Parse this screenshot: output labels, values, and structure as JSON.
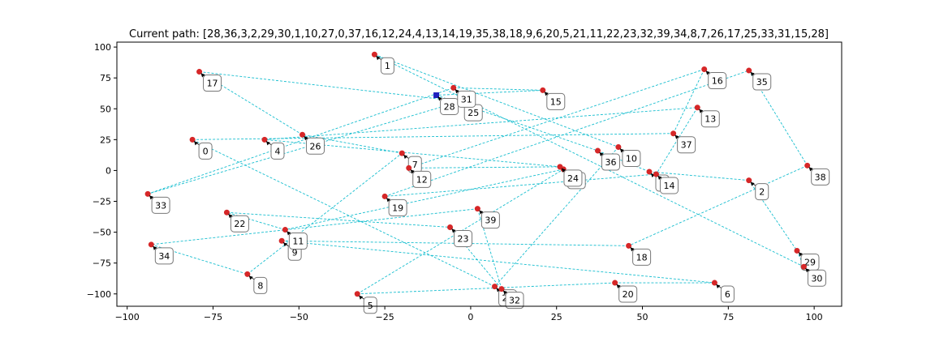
{
  "chart_data": {
    "type": "scatter",
    "title": "Current path: [28,36,3,2,29,30,1,10,27,0,37,16,12,24,4,13,14,19,35,38,18,9,6,20,5,21,11,22,23,32,39,34,8,7,26,17,25,33,31,15,28]",
    "xlabel": "",
    "ylabel": "",
    "xlim": [
      -103,
      108
    ],
    "ylim": [
      -110,
      104
    ],
    "xticks": [
      -100,
      -75,
      -50,
      -25,
      0,
      25,
      50,
      75,
      100
    ],
    "yticks": [
      -100,
      -75,
      -50,
      -25,
      0,
      25,
      50,
      75,
      100
    ],
    "grid": false,
    "point_color": "#d62728",
    "start_marker_color": "#1f1fbf",
    "path_color": "#17becf",
    "points": [
      {
        "id": 0,
        "x": -81,
        "y": 25
      },
      {
        "id": 1,
        "x": -28,
        "y": 94
      },
      {
        "id": 2,
        "x": 81,
        "y": -8
      },
      {
        "id": 3,
        "x": 52,
        "y": -1
      },
      {
        "id": 4,
        "x": -60,
        "y": 25
      },
      {
        "id": 5,
        "x": -33,
        "y": -100
      },
      {
        "id": 6,
        "x": 71,
        "y": -91
      },
      {
        "id": 7,
        "x": -20,
        "y": 14
      },
      {
        "id": 8,
        "x": -65,
        "y": -84
      },
      {
        "id": 9,
        "x": -55,
        "y": -57
      },
      {
        "id": 10,
        "x": 43,
        "y": 19
      },
      {
        "id": 11,
        "x": -54,
        "y": -48
      },
      {
        "id": 12,
        "x": -18,
        "y": 2
      },
      {
        "id": 13,
        "x": 66,
        "y": 51
      },
      {
        "id": 14,
        "x": 54,
        "y": -3
      },
      {
        "id": 15,
        "x": 21,
        "y": 65
      },
      {
        "id": 16,
        "x": 68,
        "y": 82
      },
      {
        "id": 17,
        "x": -79,
        "y": 80
      },
      {
        "id": 18,
        "x": 46,
        "y": -61
      },
      {
        "id": 19,
        "x": -25,
        "y": -21
      },
      {
        "id": 20,
        "x": 42,
        "y": -91
      },
      {
        "id": 21,
        "x": 27,
        "y": 1
      },
      {
        "id": 22,
        "x": -71,
        "y": -34
      },
      {
        "id": 23,
        "x": -6,
        "y": -46
      },
      {
        "id": 24,
        "x": 26,
        "y": 3
      },
      {
        "id": 25,
        "x": -3,
        "y": 56
      },
      {
        "id": 26,
        "x": -49,
        "y": 29
      },
      {
        "id": 27,
        "x": 7,
        "y": -94
      },
      {
        "id": 28,
        "x": -10,
        "y": 61
      },
      {
        "id": 29,
        "x": 95,
        "y": -65
      },
      {
        "id": 30,
        "x": 97,
        "y": -78
      },
      {
        "id": 31,
        "x": -5,
        "y": 67
      },
      {
        "id": 32,
        "x": 9,
        "y": -96
      },
      {
        "id": 33,
        "x": -94,
        "y": -19
      },
      {
        "id": 34,
        "x": -93,
        "y": -60
      },
      {
        "id": 35,
        "x": 81,
        "y": 81
      },
      {
        "id": 36,
        "x": 37,
        "y": 16
      },
      {
        "id": 37,
        "x": 59,
        "y": 30
      },
      {
        "id": 38,
        "x": 98,
        "y": 4
      },
      {
        "id": 39,
        "x": 2,
        "y": -31
      }
    ],
    "path": [
      28,
      36,
      3,
      2,
      29,
      30,
      1,
      10,
      27,
      0,
      37,
      16,
      12,
      24,
      4,
      13,
      14,
      19,
      35,
      38,
      18,
      9,
      6,
      20,
      5,
      21,
      11,
      22,
      23,
      32,
      39,
      34,
      8,
      7,
      26,
      17,
      25,
      33,
      31,
      15,
      28
    ],
    "start_node": 28
  }
}
